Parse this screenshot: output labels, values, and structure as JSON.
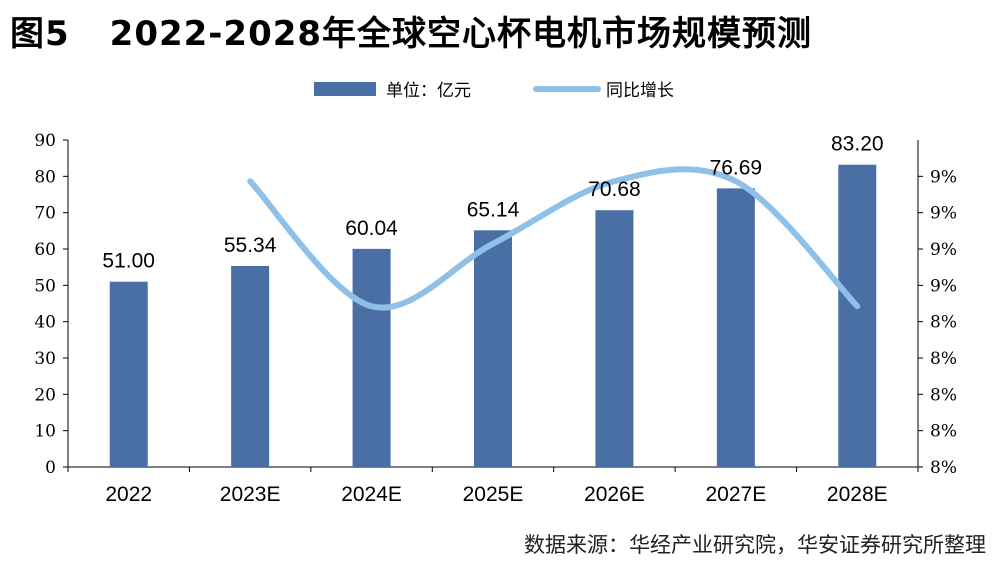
{
  "figure": {
    "label": "图5",
    "title": "2022-2028年全球空心杯电机市场规模预测",
    "source": "数据来源：华经产业研究院，华安证券研究所整理"
  },
  "colors": {
    "bar": "#4a6fa5",
    "line": "#8fc1e8",
    "axis": "#000000"
  },
  "chart_data": {
    "type": "bar",
    "categories": [
      "2022",
      "2023E",
      "2024E",
      "2025E",
      "2026E",
      "2027E",
      "2028E"
    ],
    "series": [
      {
        "name": "单位：亿元",
        "type": "bar",
        "axis": "left",
        "values": [
          51.0,
          55.34,
          60.04,
          65.14,
          70.68,
          76.69,
          83.2
        ],
        "labels": [
          "51.00",
          "55.34",
          "60.04",
          "65.14",
          "70.68",
          "76.69",
          "83.20"
        ]
      },
      {
        "name": "同比增长",
        "type": "line",
        "axis": "right",
        "values": [
          null,
          0.0851,
          0.0849,
          0.085,
          0.0851,
          0.0851,
          0.0849
        ]
      }
    ],
    "y_left": {
      "min": 0,
      "max": 90,
      "ticks": [
        "0",
        "10",
        "20",
        "30",
        "40",
        "50",
        "60",
        "70",
        "80",
        "90"
      ]
    },
    "y_right": {
      "ticks": [
        "8%",
        "8%",
        "8%",
        "8%",
        "8%",
        "9%",
        "9%",
        "9%",
        "9%"
      ]
    },
    "legend_position": "top-center",
    "grid": false
  }
}
